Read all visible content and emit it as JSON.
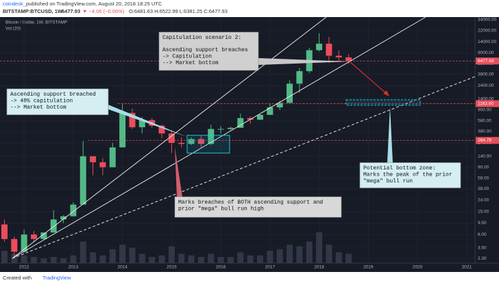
{
  "header": {
    "publisher": "coindesk_",
    "published": "published on TradingView.com, August 20, 2018 18:25 UTC",
    "symbol": "BITSTAMP:BTCUSD, 1W",
    "last": "6477.93",
    "change": "▼ −4.06 (−0.06%)",
    "ohlc": "O:6481.63 H:6522.99 L:6381.25 C:6477.93"
  },
  "footer": {
    "created": "Created with",
    "brand": "TradingView"
  },
  "chart_data": {
    "type": "candlestick",
    "title": "Bitcoin / Dollar, 1W, BITSTAMP",
    "volume_title": "Vol (20)",
    "log_scale": true,
    "up_color": "#53b987",
    "down_color": "#eb4d5c",
    "volume_color": "#3a3f50",
    "xlim": [
      2011.51,
      2021.17
    ],
    "xticks": [
      2012,
      2013,
      2014,
      2015,
      2016,
      2017,
      2018,
      2019,
      2020,
      2021
    ],
    "ylim": [
      1.9,
      37900
    ],
    "yticks": [
      {
        "value": 34000,
        "label": "34000.00"
      },
      {
        "value": 22000,
        "label": "22000.00"
      },
      {
        "value": 14000,
        "label": "14000.00"
      },
      {
        "value": 9000,
        "label": "9000.00"
      },
      {
        "value": 5800,
        "label": "5800.00"
      },
      {
        "value": 3800,
        "label": "3800.00"
      },
      {
        "value": 2400,
        "label": "2400.00"
      },
      {
        "value": 1400,
        "label": "1400.00"
      },
      {
        "value": 900,
        "label": "900.00"
      },
      {
        "value": 580,
        "label": "580.00"
      },
      {
        "value": 380,
        "label": "380.00"
      },
      {
        "value": 240,
        "label": "240.00"
      },
      {
        "value": 140,
        "label": "140.00"
      },
      {
        "value": 90,
        "label": "90.00"
      },
      {
        "value": 58,
        "label": "58.00"
      },
      {
        "value": 38,
        "label": "38.00"
      },
      {
        "value": 24,
        "label": "24.00"
      },
      {
        "value": 15,
        "label": "15.00"
      },
      {
        "value": 9.5,
        "label": "9.50"
      },
      {
        "value": 6,
        "label": "6.00"
      },
      {
        "value": 3.5,
        "label": "3.50"
      },
      {
        "value": 2.3,
        "label": "2.30"
      }
    ],
    "x": [
      2011.6,
      2011.8,
      2012.0,
      2012.2,
      2012.4,
      2012.6,
      2012.8,
      2013.0,
      2013.2,
      2013.4,
      2013.6,
      2013.8,
      2014.0,
      2014.2,
      2014.4,
      2014.6,
      2014.8,
      2015.0,
      2015.2,
      2015.4,
      2015.6,
      2015.8,
      2016.0,
      2016.2,
      2016.4,
      2016.6,
      2016.8,
      2017.0,
      2017.2,
      2017.4,
      2017.6,
      2017.8,
      2018.0,
      2018.2,
      2018.4,
      2018.6
    ],
    "open": [
      9,
      5,
      3,
      6,
      5,
      6.5,
      11,
      12.5,
      20,
      140,
      110,
      90,
      200,
      800,
      450,
      600,
      480,
      350,
      240,
      230,
      280,
      230,
      420,
      420,
      440,
      650,
      610,
      740,
      1000,
      1200,
      2600,
      4300,
      10000,
      13000,
      8000,
      7500
    ],
    "high": [
      11,
      5.5,
      7.3,
      6.9,
      6.5,
      16,
      13,
      22,
      260,
      140,
      130,
      240,
      1163,
      950,
      680,
      650,
      500,
      380,
      300,
      300,
      320,
      500,
      470,
      460,
      780,
      700,
      760,
      1150,
      1300,
      3000,
      4900,
      11000,
      19700,
      17000,
      9900,
      8500
    ],
    "low": [
      4.5,
      2.3,
      2.9,
      4.5,
      4.8,
      6.5,
      9.5,
      12.5,
      20,
      65,
      65,
      90,
      200,
      420,
      350,
      440,
      290,
      160,
      200,
      220,
      200,
      220,
      350,
      400,
      440,
      520,
      600,
      740,
      900,
      1200,
      1800,
      4000,
      9500,
      6000,
      6400,
      5800
    ],
    "close": [
      5,
      3,
      6,
      5,
      6.5,
      11,
      12.5,
      20,
      140,
      110,
      90,
      200,
      800,
      450,
      600,
      480,
      350,
      240,
      230,
      280,
      230,
      420,
      420,
      440,
      650,
      610,
      740,
      1000,
      1200,
      2600,
      4300,
      10000,
      13000,
      8000,
      7500,
      6477.93
    ],
    "volume_ylim": [
      0,
      100
    ],
    "volume": [
      40,
      30,
      25,
      20,
      15,
      20,
      15,
      25,
      70,
      35,
      25,
      45,
      60,
      50,
      30,
      20,
      25,
      55,
      30,
      25,
      20,
      30,
      20,
      20,
      35,
      25,
      25,
      40,
      45,
      60,
      55,
      70,
      100,
      60,
      35,
      30
    ],
    "price_lines": [
      {
        "value": 6477.93,
        "label": "6477.93"
      },
      {
        "value": 1163,
        "label": "1163.00",
        "x": 2013.9
      },
      {
        "value": 264.79,
        "label": "264.79",
        "x": 2013.3
      }
    ],
    "annotations": [
      {
        "title": "Capitulation scenario 2:",
        "lines": [
          "Ascending support breaches",
          "-> Capitulation",
          "--> Market bottom"
        ]
      },
      {
        "lines": [
          "Ascending support breached",
          "-> 40% capitulation",
          "--> Market bottom"
        ]
      },
      {
        "lines": [
          "Marks breaches of BOTH ascending support and",
          "prior \"mega\" bull run high"
        ]
      },
      {
        "lines": [
          "Potential bottom zone:",
          "Marks the peak of the prior",
          "\"mega\" bull run"
        ]
      }
    ]
  }
}
